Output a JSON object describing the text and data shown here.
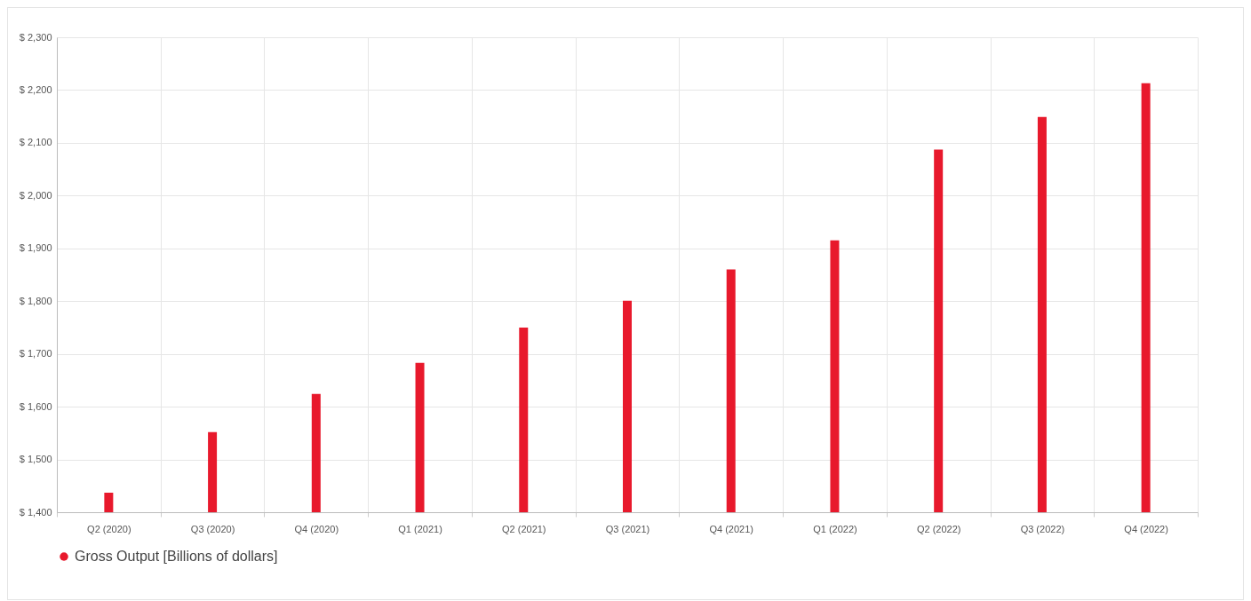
{
  "chart_data": {
    "type": "bar",
    "categories": [
      "Q2 (2020)",
      "Q3 (2020)",
      "Q4 (2020)",
      "Q1 (2021)",
      "Q2 (2021)",
      "Q3 (2021)",
      "Q4 (2021)",
      "Q1 (2022)",
      "Q2 (2022)",
      "Q3 (2022)",
      "Q4 (2022)"
    ],
    "series": [
      {
        "name": "Gross Output [Billions of dollars]",
        "color": "#e8192c",
        "values": [
          1437,
          1552,
          1624,
          1683,
          1750,
          1801,
          1860,
          1915,
          2087,
          2149,
          2213
        ]
      }
    ],
    "ylim": [
      1400,
      2300
    ],
    "yticks": [
      {
        "value": 1400,
        "label": "$ 1,400"
      },
      {
        "value": 1500,
        "label": "$ 1,500"
      },
      {
        "value": 1600,
        "label": "$ 1,600"
      },
      {
        "value": 1700,
        "label": "$ 1,700"
      },
      {
        "value": 1800,
        "label": "$ 1,800"
      },
      {
        "value": 1900,
        "label": "$ 1,900"
      },
      {
        "value": 2000,
        "label": "$ 2,000"
      },
      {
        "value": 2100,
        "label": "$ 2,100"
      },
      {
        "value": 2200,
        "label": "$ 2,200"
      },
      {
        "value": 2300,
        "label": "$ 2,300"
      }
    ],
    "grid": true,
    "legend": "bottom"
  }
}
